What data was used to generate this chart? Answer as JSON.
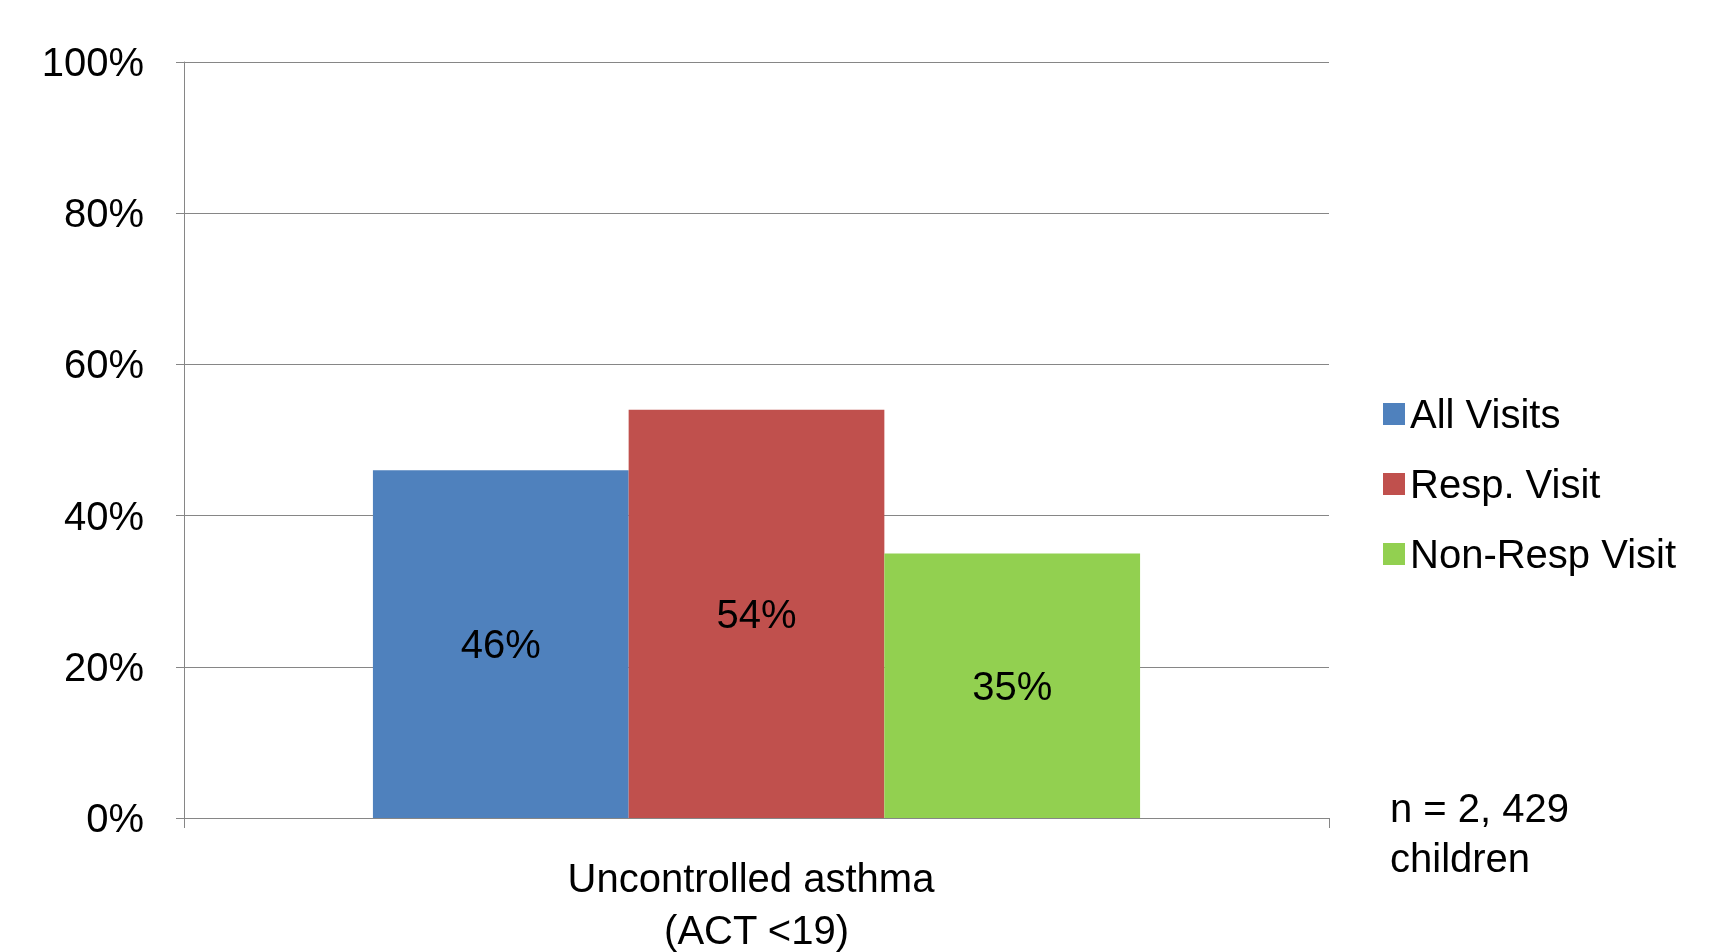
{
  "chart_data": {
    "type": "bar",
    "categories": [
      "Uncontrolled asthma (ACT <19)"
    ],
    "series": [
      {
        "name": "All Visits",
        "color": "#4f81bd",
        "values": [
          46
        ]
      },
      {
        "name": "Resp. Visit",
        "color": "#c0504d",
        "values": [
          54
        ]
      },
      {
        "name": "Non-Resp Visit",
        "color": "#92d050",
        "values": [
          35
        ]
      }
    ],
    "ylim": [
      0,
      100
    ],
    "yticks": [
      {
        "value": 0,
        "label": "0%"
      },
      {
        "value": 20,
        "label": "20%"
      },
      {
        "value": 40,
        "label": "40%"
      },
      {
        "value": 60,
        "label": "60%"
      },
      {
        "value": 80,
        "label": "80%"
      },
      {
        "value": 100,
        "label": "100%"
      }
    ],
    "value_labels": [
      [
        "46%"
      ],
      [
        "54%"
      ],
      [
        "35%"
      ]
    ],
    "grid": "y",
    "legend": "right",
    "annotations": [
      "n = 2, 429 children"
    ]
  }
}
